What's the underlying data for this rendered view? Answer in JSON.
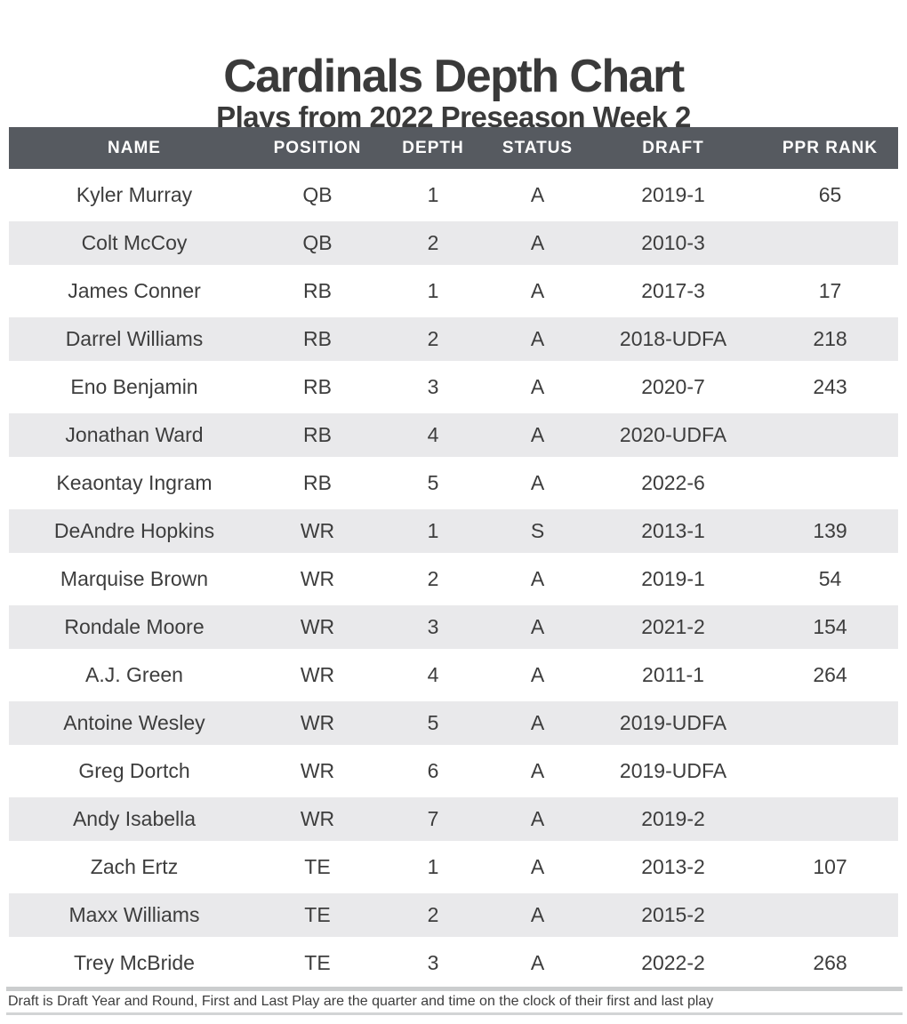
{
  "title": "Cardinals Depth Chart",
  "subtitle": "Plays from 2022 Preseason Week 2",
  "footnote": "Draft is Draft Year and Round, First and Last Play are the quarter and time on the clock of their first and last play",
  "colors": {
    "header_bg": "#565a60",
    "header_text": "#ffffff",
    "stripe_bg": "#e9e9eb",
    "text": "#3d3d3d",
    "rule_top": "#cbcdce",
    "rule_bottom": "#d2d4d5"
  },
  "chart_data": {
    "type": "table",
    "title": "Cardinals Depth Chart",
    "subtitle": "Plays from 2022 Preseason Week 2",
    "columns": [
      "NAME",
      "POSITION",
      "DEPTH",
      "STATUS",
      "DRAFT",
      "PPR RANK"
    ],
    "column_widths_pct": [
      28.2,
      13,
      13,
      10.5,
      20,
      15.3
    ],
    "rows": [
      [
        "Kyler Murray",
        "QB",
        "1",
        "A",
        "2019-1",
        "65"
      ],
      [
        "Colt McCoy",
        "QB",
        "2",
        "A",
        "2010-3",
        ""
      ],
      [
        "James Conner",
        "RB",
        "1",
        "A",
        "2017-3",
        "17"
      ],
      [
        "Darrel Williams",
        "RB",
        "2",
        "A",
        "2018-UDFA",
        "218"
      ],
      [
        "Eno Benjamin",
        "RB",
        "3",
        "A",
        "2020-7",
        "243"
      ],
      [
        "Jonathan Ward",
        "RB",
        "4",
        "A",
        "2020-UDFA",
        ""
      ],
      [
        "Keaontay Ingram",
        "RB",
        "5",
        "A",
        "2022-6",
        ""
      ],
      [
        "DeAndre Hopkins",
        "WR",
        "1",
        "S",
        "2013-1",
        "139"
      ],
      [
        "Marquise Brown",
        "WR",
        "2",
        "A",
        "2019-1",
        "54"
      ],
      [
        "Rondale Moore",
        "WR",
        "3",
        "A",
        "2021-2",
        "154"
      ],
      [
        "A.J. Green",
        "WR",
        "4",
        "A",
        "2011-1",
        "264"
      ],
      [
        "Antoine Wesley",
        "WR",
        "5",
        "A",
        "2019-UDFA",
        ""
      ],
      [
        "Greg Dortch",
        "WR",
        "6",
        "A",
        "2019-UDFA",
        ""
      ],
      [
        "Andy Isabella",
        "WR",
        "7",
        "A",
        "2019-2",
        ""
      ],
      [
        "Zach Ertz",
        "TE",
        "1",
        "A",
        "2013-2",
        "107"
      ],
      [
        "Maxx Williams",
        "TE",
        "2",
        "A",
        "2015-2",
        ""
      ],
      [
        "Trey McBride",
        "TE",
        "3",
        "A",
        "2022-2",
        "268"
      ]
    ]
  }
}
